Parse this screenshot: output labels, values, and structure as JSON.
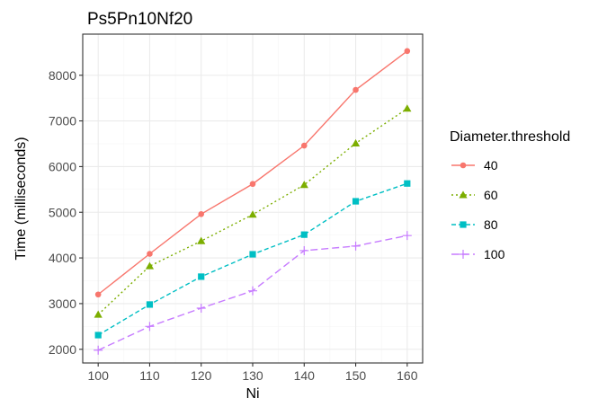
{
  "chart_data": {
    "type": "line",
    "title": "Ps5Pn10Nf20",
    "xlabel": "Ni",
    "ylabel": "Time (milliseconds)",
    "x": [
      100,
      110,
      120,
      130,
      140,
      150,
      160
    ],
    "xlim": [
      97,
      163
    ],
    "ylim": [
      1700,
      8900
    ],
    "xticks": [
      100,
      110,
      120,
      130,
      140,
      150,
      160
    ],
    "yticks": [
      2000,
      3000,
      4000,
      5000,
      6000,
      7000,
      8000
    ],
    "grid": true,
    "legend": {
      "title": "Diameter.threshold",
      "placement": "right"
    },
    "series": [
      {
        "name": "40",
        "color": "#f8766d",
        "marker": "circle",
        "dash": "solid",
        "values": [
          3200,
          4090,
          4960,
          5620,
          6460,
          7680,
          8530
        ]
      },
      {
        "name": "60",
        "color": "#7cae00",
        "marker": "triangle",
        "dash": "dotted",
        "values": [
          2760,
          3820,
          4370,
          4950,
          5600,
          6510,
          7270
        ]
      },
      {
        "name": "80",
        "color": "#00bfc4",
        "marker": "square",
        "dash": "dashed",
        "values": [
          2310,
          2980,
          3590,
          4080,
          4510,
          5240,
          5630
        ]
      },
      {
        "name": "100",
        "color": "#c77cff",
        "marker": "plus",
        "dash": "longdash",
        "values": [
          1980,
          2500,
          2900,
          3280,
          4160,
          4260,
          4490
        ]
      }
    ]
  }
}
